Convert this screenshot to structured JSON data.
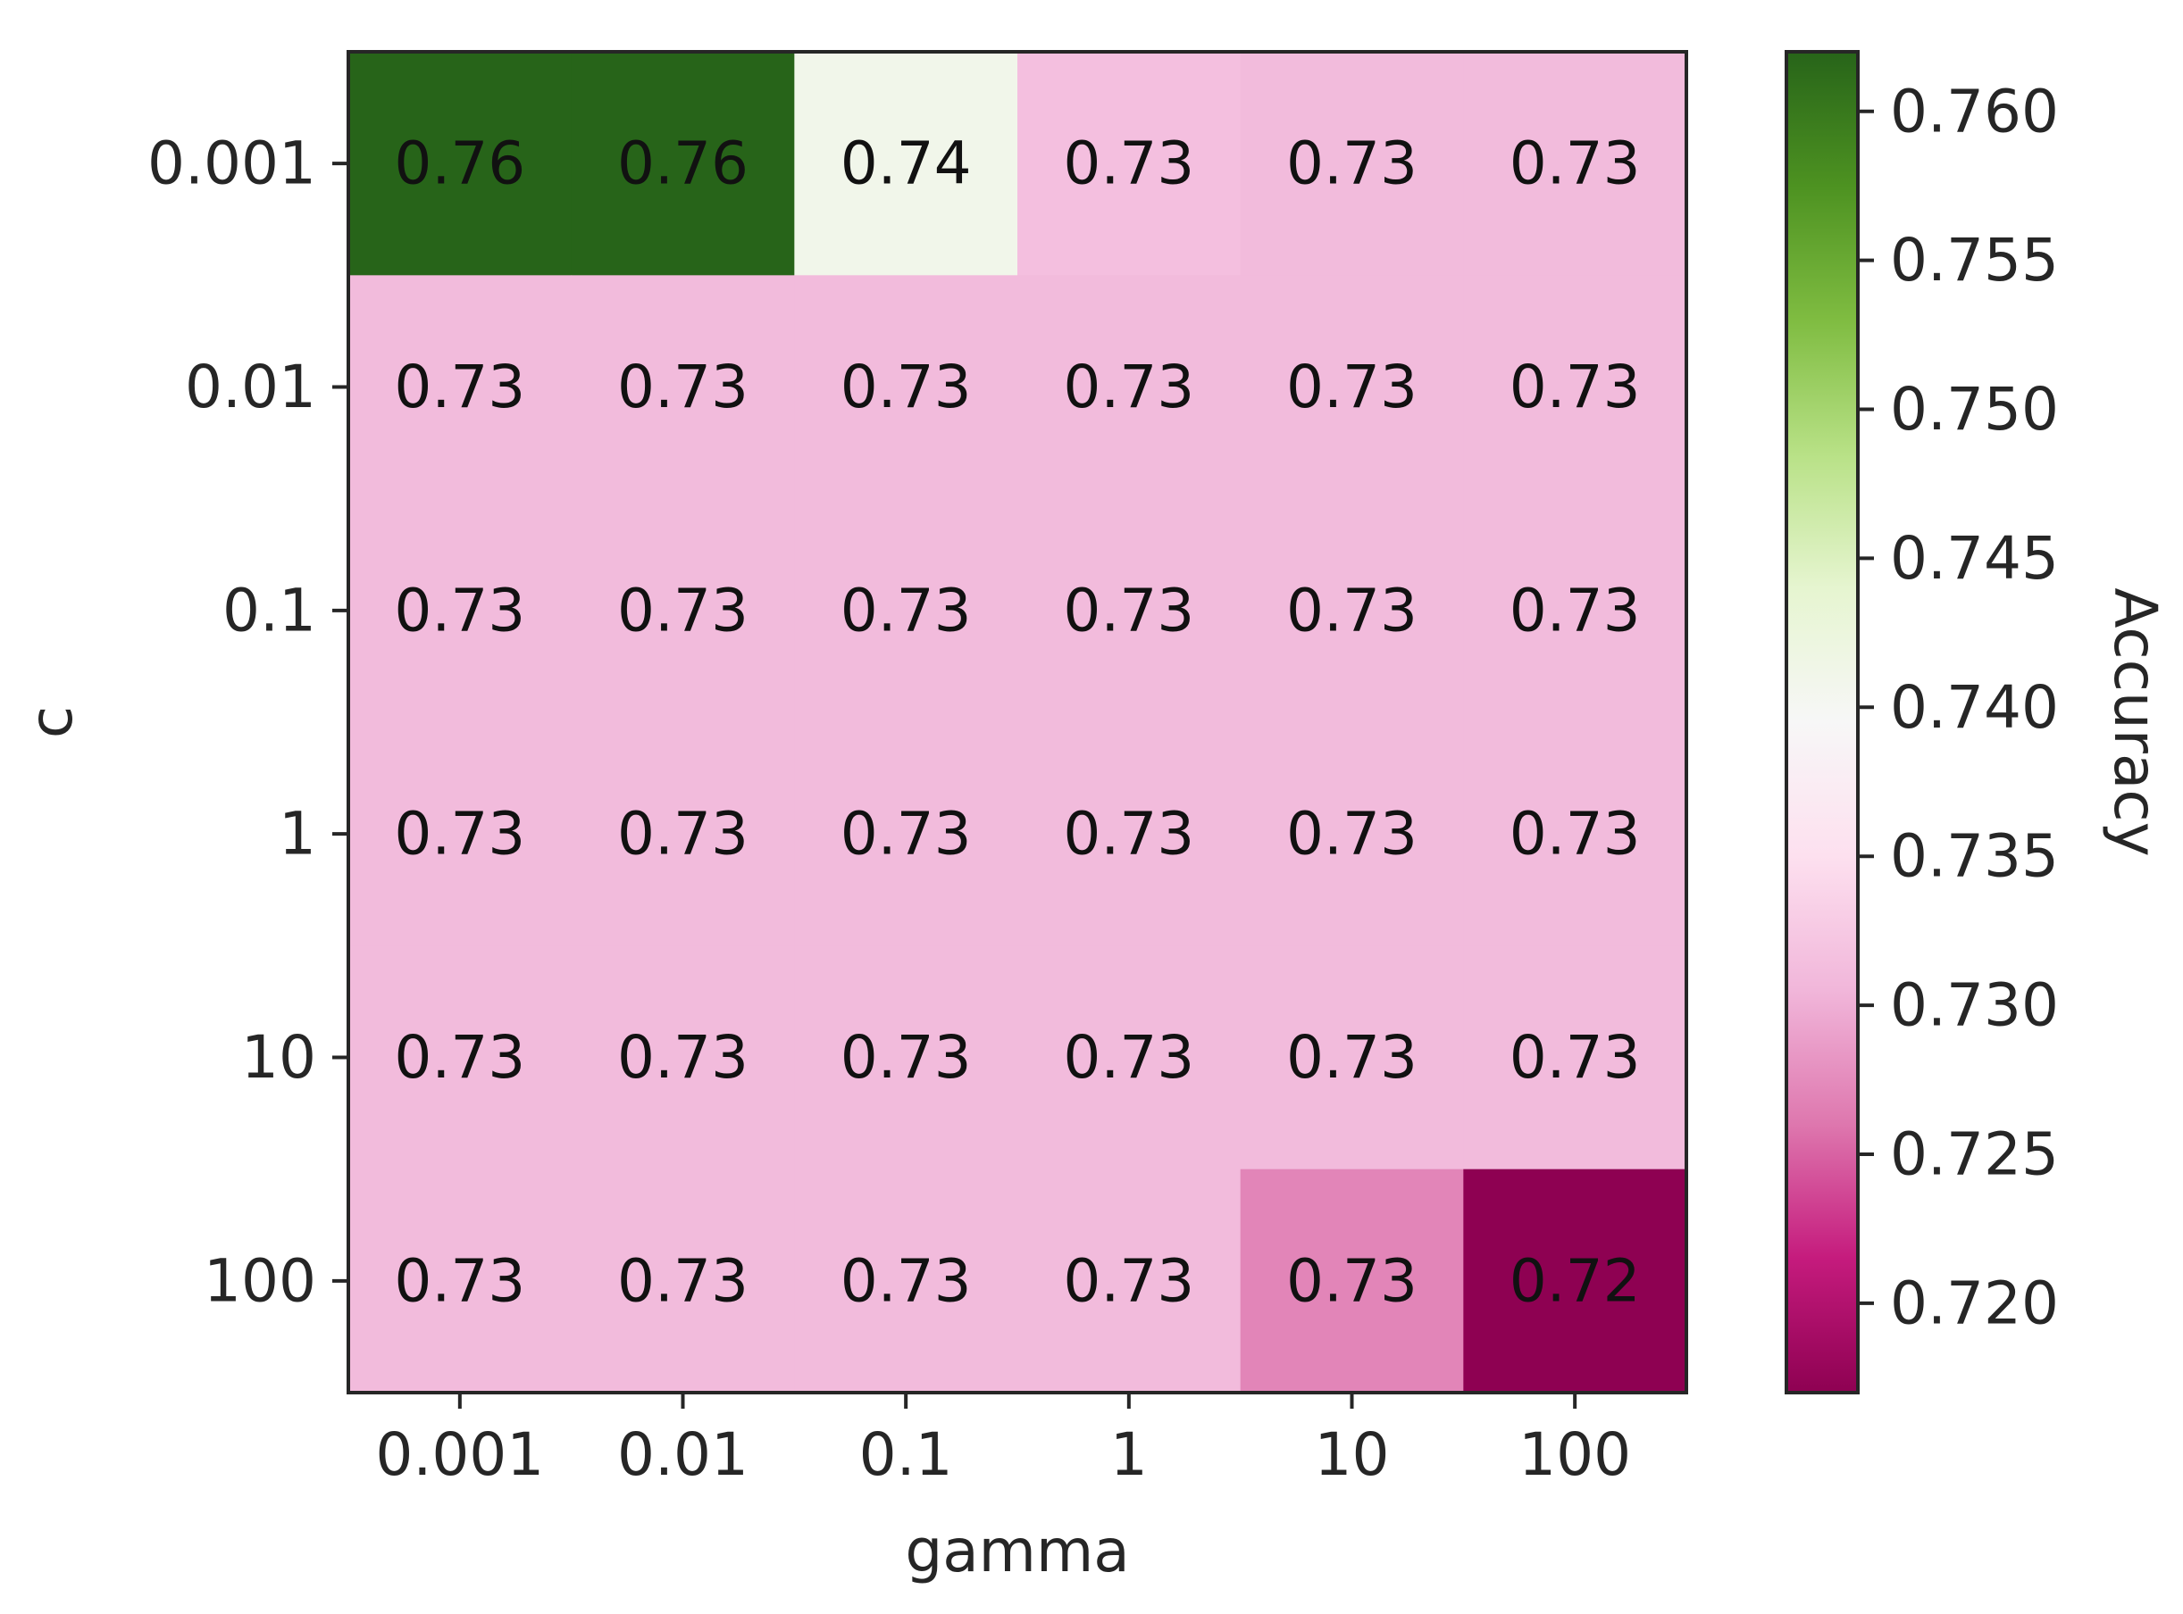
{
  "chart_data": {
    "type": "heatmap",
    "title": "",
    "xlabel": "gamma",
    "ylabel": "c",
    "x_categories": [
      "0.001",
      "0.01",
      "0.1",
      "1",
      "10",
      "100"
    ],
    "y_categories": [
      "0.001",
      "0.01",
      "0.1",
      "1",
      "10",
      "100"
    ],
    "values": [
      [
        0.762,
        0.762,
        0.741,
        0.7315,
        0.731,
        0.731
      ],
      [
        0.731,
        0.731,
        0.731,
        0.731,
        0.731,
        0.731
      ],
      [
        0.731,
        0.731,
        0.731,
        0.731,
        0.731,
        0.731
      ],
      [
        0.731,
        0.731,
        0.731,
        0.731,
        0.731,
        0.731
      ],
      [
        0.731,
        0.731,
        0.731,
        0.731,
        0.731,
        0.731
      ],
      [
        0.731,
        0.731,
        0.731,
        0.731,
        0.727,
        0.717
      ]
    ],
    "cell_labels": [
      [
        "0.76",
        "0.76",
        "0.74",
        "0.73",
        "0.73",
        "0.73"
      ],
      [
        "0.73",
        "0.73",
        "0.73",
        "0.73",
        "0.73",
        "0.73"
      ],
      [
        "0.73",
        "0.73",
        "0.73",
        "0.73",
        "0.73",
        "0.73"
      ],
      [
        "0.73",
        "0.73",
        "0.73",
        "0.73",
        "0.73",
        "0.73"
      ],
      [
        "0.73",
        "0.73",
        "0.73",
        "0.73",
        "0.73",
        "0.73"
      ],
      [
        "0.73",
        "0.73",
        "0.73",
        "0.73",
        "0.73",
        "0.72"
      ]
    ],
    "colorbar": {
      "label": "Accuracy",
      "range": [
        0.717,
        0.762
      ],
      "ticks": [
        0.72,
        0.725,
        0.73,
        0.735,
        0.74,
        0.745,
        0.75,
        0.755,
        0.76
      ],
      "tick_labels": [
        "0.720",
        "0.725",
        "0.730",
        "0.735",
        "0.740",
        "0.745",
        "0.750",
        "0.755",
        "0.760"
      ]
    },
    "colormap": "PiYG",
    "colormap_stops": [
      "#8e0152",
      "#c51b7d",
      "#de77ae",
      "#f1b6da",
      "#fde0ef",
      "#f7f7f7",
      "#e6f5d0",
      "#b8e186",
      "#7fbc41",
      "#4d9221",
      "#276419"
    ]
  }
}
